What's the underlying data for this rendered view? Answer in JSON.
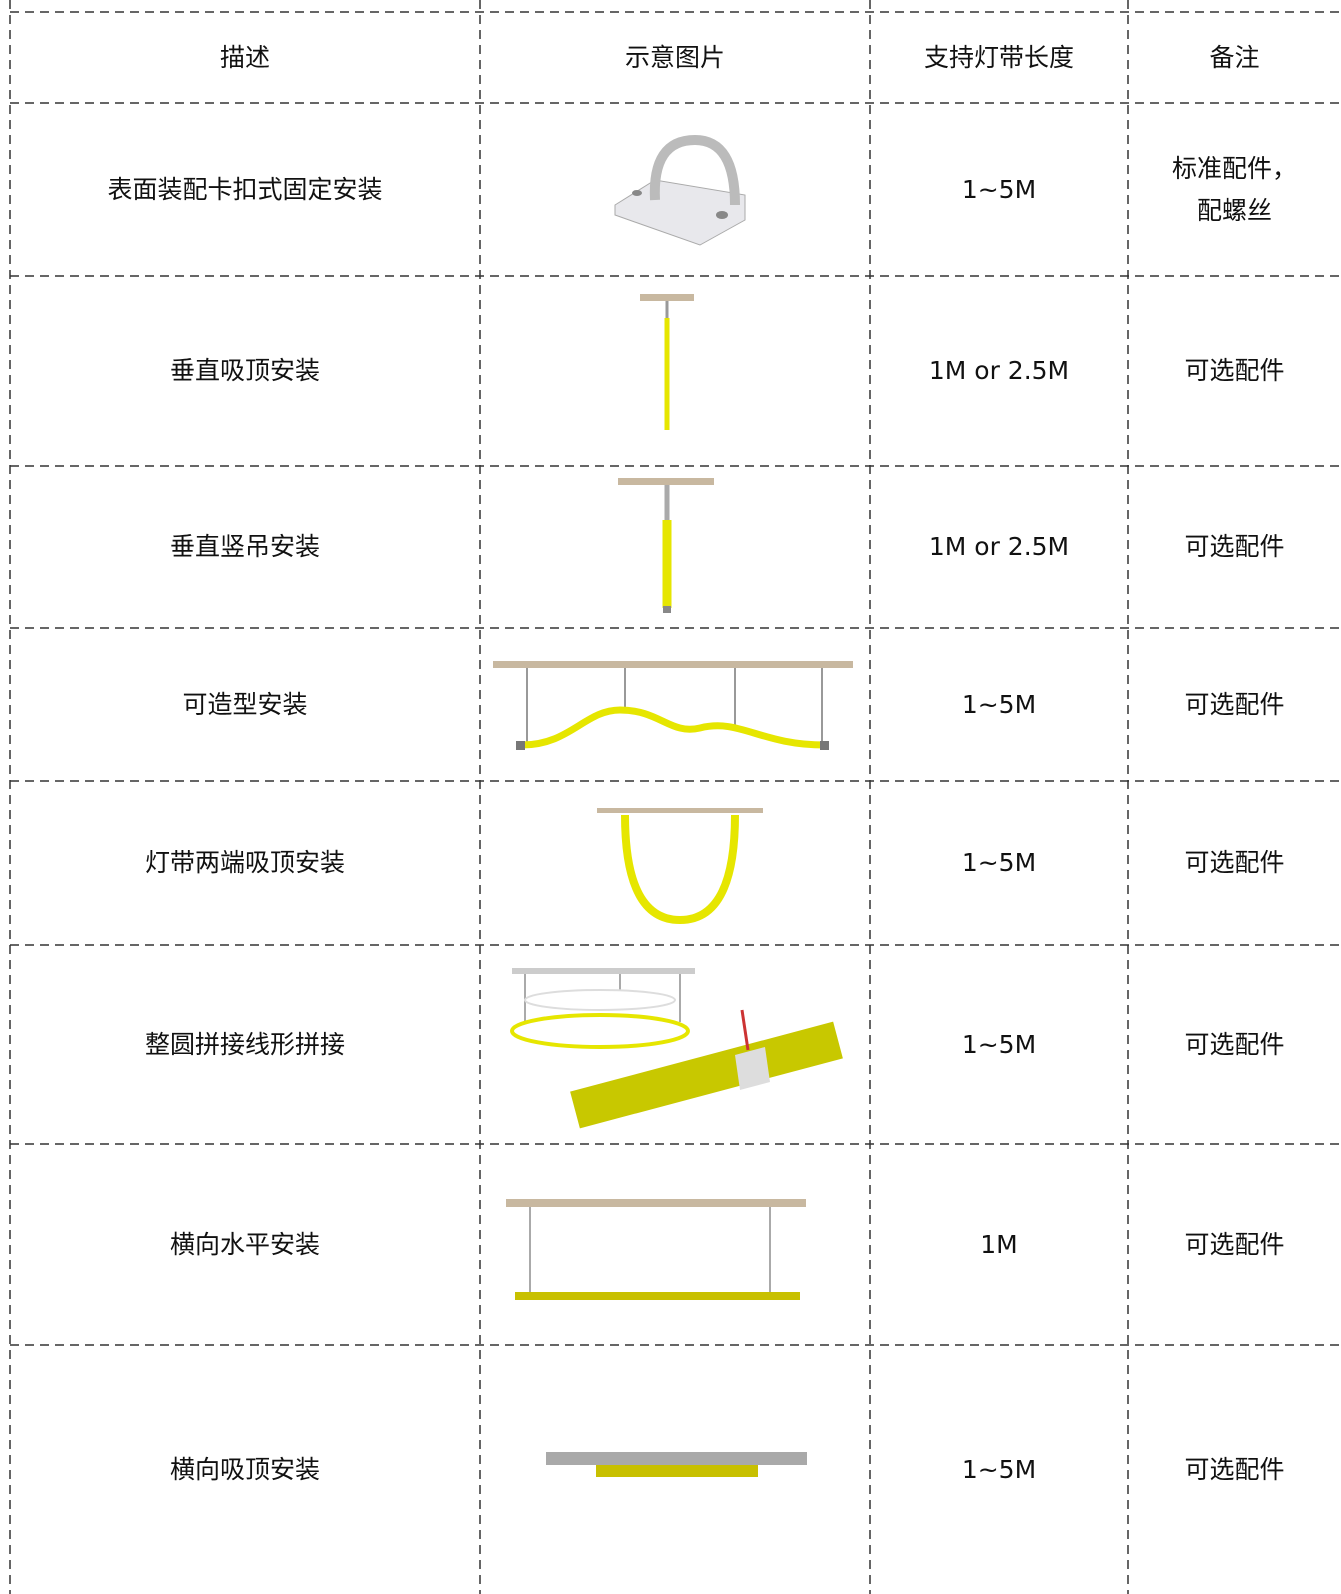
{
  "table": {
    "header": [
      "描述",
      "示意图片",
      "支持灯带长度",
      "备注"
    ],
    "rows": [
      [
        "表面装配卡扣式固定安装",
        "1~5M",
        "标准配件，\n配螺丝"
      ],
      [
        "垂直吸顶安装",
        "1M or 2.5M",
        "可选配件"
      ],
      [
        "垂直竖吊安装",
        "1M or 2.5M",
        "可选配件"
      ],
      [
        "可造型安装",
        "1~5M",
        "可选配件"
      ],
      [
        "灯带两端吸顶安装",
        "1~5M",
        "可选配件"
      ],
      [
        "整圆拼接线形拼接",
        "1~5M",
        "可选配件"
      ],
      [
        "横向水平安装",
        "1M",
        "可选配件"
      ],
      [
        "横向吸顶安装",
        "1~5M",
        "可选配件"
      ]
    ]
  }
}
